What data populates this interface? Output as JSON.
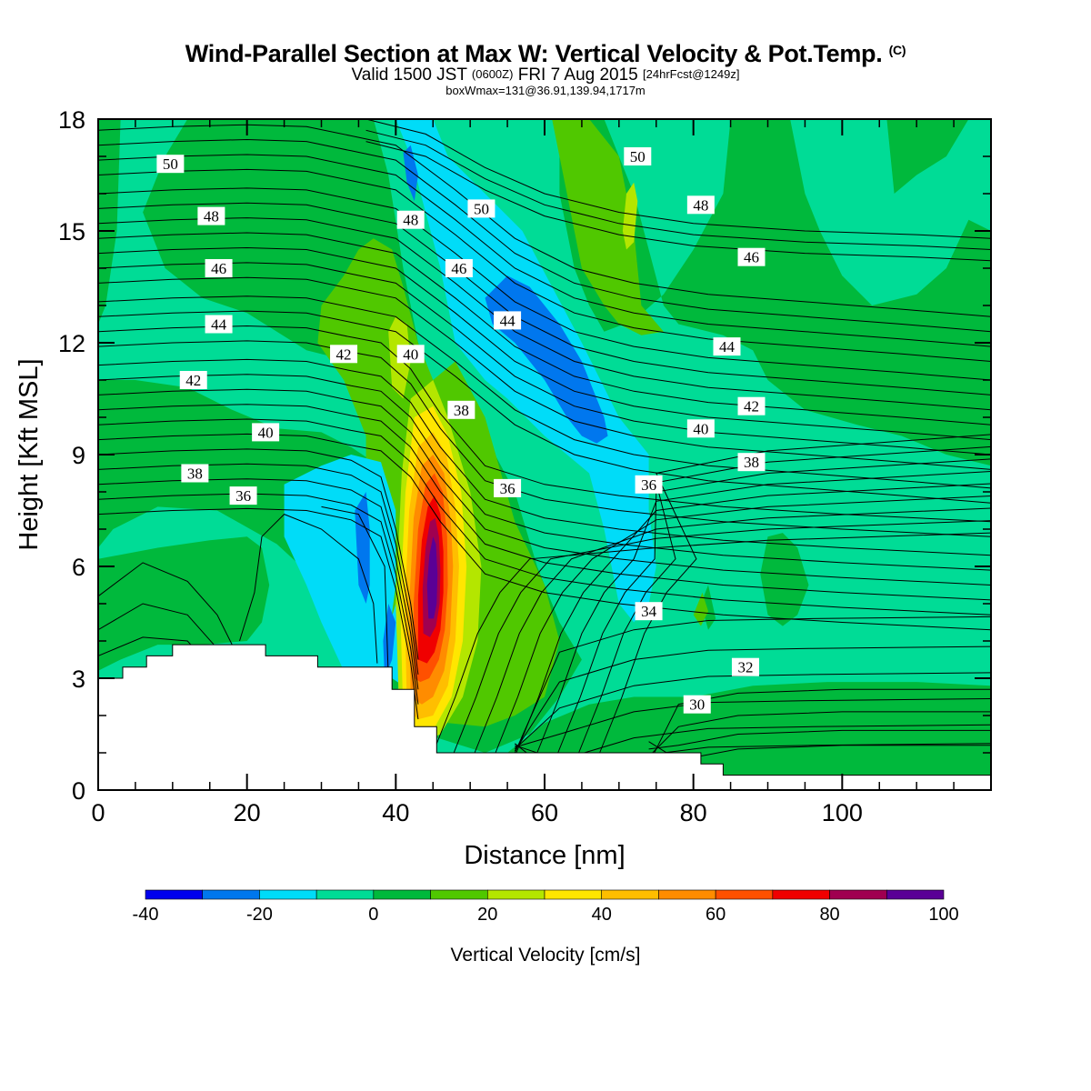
{
  "header": {
    "title": "Wind-Parallel Section at Max W: Vertical Velocity & Pot.Temp.",
    "title_mark": "(C)",
    "valid_prefix": "Valid 1500 JST",
    "valid_utc": "(0600Z)",
    "valid_date": "FRI 7 Aug 2015",
    "forecast_info": "[24hrFcst@1249z]",
    "box_info": "boxWmax=131@36.91,139.94,1717m"
  },
  "colors": {
    "w_levels": [
      "#0000ee",
      "#0077ee",
      "#00dcf8",
      "#00dc96",
      "#00b93c",
      "#50c800",
      "#b4e600",
      "#ffe600",
      "#ffbe00",
      "#ff8c00",
      "#ff5000",
      "#f00000",
      "#a00050",
      "#5a0096"
    ],
    "terrain": "#ffffff",
    "contour": "#000000"
  },
  "chart_data": {
    "type": "heatmap",
    "xlabel": "Distance [nm]",
    "ylabel": "Height [Kft MSL]",
    "xlim": [
      0,
      120
    ],
    "ylim": [
      0,
      18
    ],
    "x_ticks": [
      "0",
      "20",
      "40",
      "60",
      "80",
      "100"
    ],
    "x_tick_values": [
      0,
      20,
      40,
      60,
      80,
      100
    ],
    "y_ticks": [
      "0",
      "3",
      "6",
      "9",
      "12",
      "15",
      "18"
    ],
    "y_tick_values": [
      0,
      3,
      6,
      9,
      12,
      15,
      18
    ],
    "colorbar": {
      "label": "Vertical Velocity [cm/s]",
      "boundaries": [
        -40,
        -30,
        -20,
        -10,
        0,
        10,
        20,
        30,
        40,
        50,
        60,
        70,
        80,
        90,
        100
      ],
      "tick_labels": [
        "-40",
        "-20",
        "0",
        "20",
        "40",
        "60",
        "80",
        "100"
      ],
      "tick_values": [
        -40,
        -20,
        0,
        20,
        40,
        60,
        80,
        100
      ]
    },
    "updraft_max": {
      "x": 45,
      "y": 6.2,
      "w": 100
    },
    "downdraft_max": {
      "x": 63,
      "y": 11.5,
      "w": -25
    },
    "terrain_profile": [
      [
        0,
        3.0
      ],
      [
        3.3,
        3.3
      ],
      [
        6.5,
        3.6
      ],
      [
        10,
        3.9
      ],
      [
        22.5,
        3.6
      ],
      [
        29.5,
        3.3
      ],
      [
        39.5,
        2.7
      ],
      [
        42.5,
        1.7
      ],
      [
        45.5,
        1.0
      ],
      [
        81,
        0.7
      ],
      [
        84,
        0.4
      ],
      [
        120,
        0.4
      ]
    ],
    "theta_contour_labels": [
      {
        "text": "50",
        "x": 9.7,
        "y": 16.8
      },
      {
        "text": "48",
        "x": 15.2,
        "y": 15.4
      },
      {
        "text": "46",
        "x": 16.2,
        "y": 14.0
      },
      {
        "text": "44",
        "x": 16.2,
        "y": 12.5
      },
      {
        "text": "42",
        "x": 12.8,
        "y": 11.0
      },
      {
        "text": "40",
        "x": 22.5,
        "y": 9.6
      },
      {
        "text": "38",
        "x": 13.0,
        "y": 8.5
      },
      {
        "text": "36",
        "x": 19.5,
        "y": 7.9
      },
      {
        "text": "42",
        "x": 33.0,
        "y": 11.7
      },
      {
        "text": "40",
        "x": 42.0,
        "y": 11.7
      },
      {
        "text": "38",
        "x": 48.8,
        "y": 10.2
      },
      {
        "text": "36",
        "x": 55.0,
        "y": 8.1
      },
      {
        "text": "48",
        "x": 42.0,
        "y": 15.3
      },
      {
        "text": "50",
        "x": 51.5,
        "y": 15.6
      },
      {
        "text": "46",
        "x": 48.5,
        "y": 14.0
      },
      {
        "text": "44",
        "x": 55.0,
        "y": 12.6
      },
      {
        "text": "50",
        "x": 72.5,
        "y": 17.0
      },
      {
        "text": "48",
        "x": 81.0,
        "y": 15.7
      },
      {
        "text": "46",
        "x": 87.8,
        "y": 14.3
      },
      {
        "text": "44",
        "x": 84.5,
        "y": 11.9
      },
      {
        "text": "42",
        "x": 87.8,
        "y": 10.3
      },
      {
        "text": "40",
        "x": 81.0,
        "y": 9.7
      },
      {
        "text": "38",
        "x": 87.8,
        "y": 8.8
      },
      {
        "text": "36",
        "x": 74.0,
        "y": 8.2
      },
      {
        "text": "34",
        "x": 74.0,
        "y": 4.8
      },
      {
        "text": "32",
        "x": 87.0,
        "y": 3.3
      },
      {
        "text": "30",
        "x": 80.5,
        "y": 2.3
      }
    ]
  }
}
